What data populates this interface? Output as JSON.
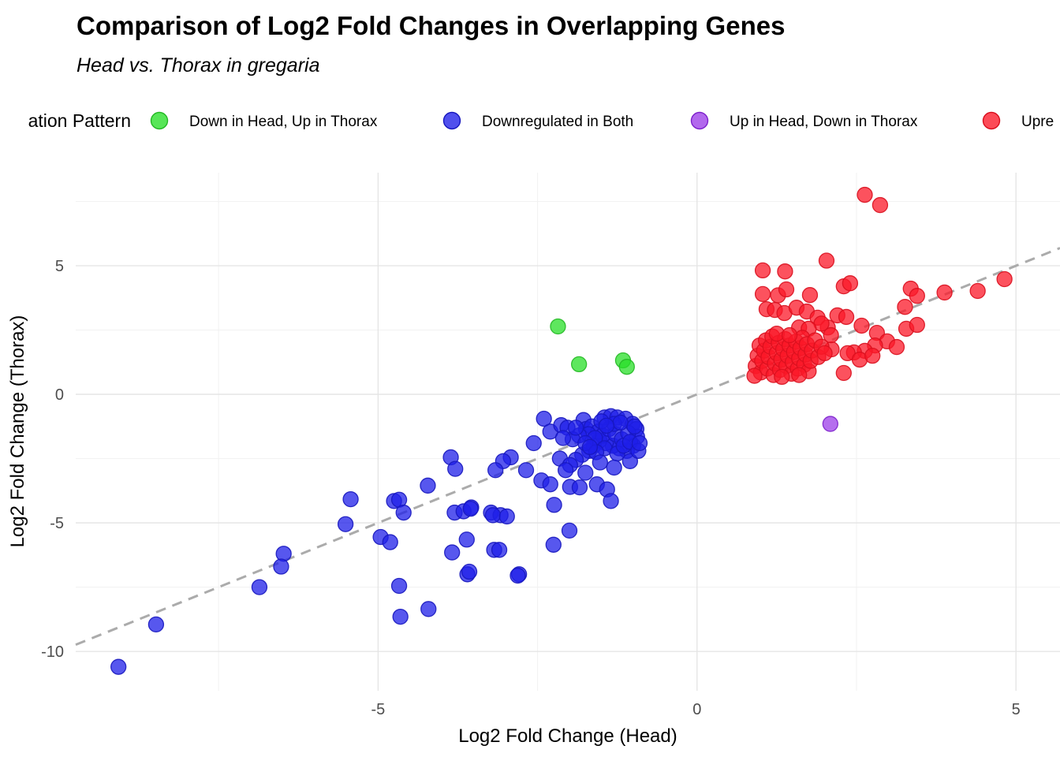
{
  "header": {
    "title": "Comparison of Log2 Fold Changes in Overlapping Genes",
    "subtitle": "Head vs. Thorax in gregaria"
  },
  "legend": {
    "title": "ation Pattern",
    "items": [
      {
        "label": "Down in Head, Up in Thorax",
        "color": "#28DF28",
        "stroke": "#24B824"
      },
      {
        "label": "Downregulated in Both",
        "color": "#1F1FE8",
        "stroke": "#1717BE"
      },
      {
        "label": "Up in Head, Down in Thorax",
        "color": "#9C3DE8",
        "stroke": "#7D20CB"
      },
      {
        "label": "Upre",
        "color": "#FB1828",
        "stroke": "#D90F1E"
      }
    ]
  },
  "chart_data": {
    "type": "scatter",
    "title": "Comparison of Log2 Fold Changes in Overlapping Genes",
    "subtitle": "Head vs. Thorax in gregaria",
    "xlabel": "Log2 Fold Change (Head)",
    "ylabel": "Log2 Fold Change (Thorax)",
    "xlim": [
      -9.74,
      5.69
    ],
    "ylim": [
      -11.53,
      8.62
    ],
    "x_ticks": [
      {
        "v": -5,
        "label": "-5"
      },
      {
        "v": 0,
        "label": "0"
      },
      {
        "v": 5,
        "label": "5"
      }
    ],
    "y_ticks": [
      {
        "v": 5,
        "label": "5"
      },
      {
        "v": 0,
        "label": "0"
      },
      {
        "v": -5,
        "label": "-5"
      },
      {
        "v": -10,
        "label": "-10"
      }
    ],
    "x_minor_ticks": [
      -7.5,
      -2.5,
      2.5
    ],
    "y_minor_ticks": [
      7.5,
      2.5,
      -2.5,
      -7.5
    ],
    "grid": true,
    "legend_position": "top",
    "reference_line": {
      "type": "identity y=x",
      "style": "dashed",
      "color": "#ABABAB"
    },
    "series": [
      {
        "name": "Down in Head, Up in Thorax",
        "color": "#28DF28",
        "stroke": "#24B824",
        "points": [
          [
            -2.18,
            2.64
          ],
          [
            -1.85,
            1.17
          ],
          [
            -1.16,
            1.32
          ],
          [
            -1.1,
            1.07
          ]
        ]
      },
      {
        "name": "Downregulated in Both",
        "color": "#1F1FE8",
        "stroke": "#1717BE",
        "points": [
          [
            -9.07,
            -10.6
          ],
          [
            -8.48,
            -8.95
          ],
          [
            -6.86,
            -7.5
          ],
          [
            -6.48,
            -6.2
          ],
          [
            -6.52,
            -6.7
          ],
          [
            -5.43,
            -4.08
          ],
          [
            -4.75,
            -4.15
          ],
          [
            -5.51,
            -5.05
          ],
          [
            -4.96,
            -5.55
          ],
          [
            -4.81,
            -5.75
          ],
          [
            -4.67,
            -7.45
          ],
          [
            -4.65,
            -8.65
          ],
          [
            -4.21,
            -8.35
          ],
          [
            -4.67,
            -4.1
          ],
          [
            -4.6,
            -4.6
          ],
          [
            -4.22,
            -3.55
          ],
          [
            -3.86,
            -2.45
          ],
          [
            -3.79,
            -2.9
          ],
          [
            -3.84,
            -6.15
          ],
          [
            -3.61,
            -5.65
          ],
          [
            -3.8,
            -4.6
          ],
          [
            -3.66,
            -4.55
          ],
          [
            -3.54,
            -4.4
          ],
          [
            -3.23,
            -4.6
          ],
          [
            -3.08,
            -4.7
          ],
          [
            -3.18,
            -6.05
          ],
          [
            -2.79,
            -7.0
          ],
          [
            -3.6,
            -7.0
          ],
          [
            -2.81,
            -7.05
          ],
          [
            -3.55,
            -4.45
          ],
          [
            -3.2,
            -4.7
          ],
          [
            -2.98,
            -4.75
          ],
          [
            -3.57,
            -6.9
          ],
          [
            -3.1,
            -6.05
          ],
          [
            -2.92,
            -2.45
          ],
          [
            -3.04,
            -2.6
          ],
          [
            -3.16,
            -2.95
          ],
          [
            -2.68,
            -2.95
          ],
          [
            -2.56,
            -1.9
          ],
          [
            -2.44,
            -3.35
          ],
          [
            -2.3,
            -3.5
          ],
          [
            -1.99,
            -3.6
          ],
          [
            -1.84,
            -3.62
          ],
          [
            -1.57,
            -3.5
          ],
          [
            -1.41,
            -3.7
          ],
          [
            -1.35,
            -4.15
          ],
          [
            -2.24,
            -4.3
          ],
          [
            -2.0,
            -5.3
          ],
          [
            -2.25,
            -5.85
          ],
          [
            -2.15,
            -2.5
          ],
          [
            -2.4,
            -0.95
          ],
          [
            -2.3,
            -1.45
          ],
          [
            -2.13,
            -1.2
          ],
          [
            -2.03,
            -1.3
          ],
          [
            -1.78,
            -1.0
          ],
          [
            -1.74,
            -1.35
          ],
          [
            -1.45,
            -0.9
          ],
          [
            -1.35,
            -0.85
          ],
          [
            -1.25,
            -0.9
          ],
          [
            -1.12,
            -0.95
          ],
          [
            -1.01,
            -1.15
          ],
          [
            -0.95,
            -1.35
          ],
          [
            -0.94,
            -1.65
          ],
          [
            -1.0,
            -2.0
          ],
          [
            -1.1,
            -2.2
          ],
          [
            -1.22,
            -2.1
          ],
          [
            -1.32,
            -2.0
          ],
          [
            -1.43,
            -1.9
          ],
          [
            -1.53,
            -1.8
          ],
          [
            -1.62,
            -2.0
          ],
          [
            -1.69,
            -2.2
          ],
          [
            -1.8,
            -2.35
          ],
          [
            -1.9,
            -2.55
          ],
          [
            -1.99,
            -2.75
          ],
          [
            -2.06,
            -2.95
          ],
          [
            -1.65,
            -1.25
          ],
          [
            -1.55,
            -1.45
          ],
          [
            -1.48,
            -1.6
          ],
          [
            -1.38,
            -1.35
          ],
          [
            -1.28,
            -1.55
          ],
          [
            -1.18,
            -1.75
          ],
          [
            -1.08,
            -1.5
          ],
          [
            -1.3,
            -1.15
          ],
          [
            -1.5,
            -1.05
          ],
          [
            -1.7,
            -1.55
          ],
          [
            -1.6,
            -1.7
          ],
          [
            -1.45,
            -2.1
          ],
          [
            -1.25,
            -2.3
          ],
          [
            -1.15,
            -2.0
          ],
          [
            -1.05,
            -1.85
          ],
          [
            -1.85,
            -1.6
          ],
          [
            -1.95,
            -1.75
          ],
          [
            -1.75,
            -1.9
          ],
          [
            -1.58,
            -2.25
          ],
          [
            -1.9,
            -1.3
          ],
          [
            -2.1,
            -1.7
          ],
          [
            -1.2,
            -1.1
          ],
          [
            -0.98,
            -1.25
          ],
          [
            -1.42,
            -1.22
          ],
          [
            -1.68,
            -2.05
          ],
          [
            -1.05,
            -2.6
          ],
          [
            -1.52,
            -2.65
          ],
          [
            -1.3,
            -2.85
          ],
          [
            -1.75,
            -3.05
          ],
          [
            -0.92,
            -2.2
          ],
          [
            -0.9,
            -1.9
          ]
        ]
      },
      {
        "name": "Up in Head, Down in Thorax",
        "color": "#9C3DE8",
        "stroke": "#7D20CB",
        "points": [
          [
            2.09,
            -1.15
          ]
        ]
      },
      {
        "name": "Upre",
        "color": "#FB1828",
        "stroke": "#D90F1E",
        "points": [
          [
            1.03,
            4.82
          ],
          [
            1.38,
            4.78
          ],
          [
            2.03,
            5.2
          ],
          [
            2.63,
            7.76
          ],
          [
            2.87,
            7.36
          ],
          [
            1.03,
            3.9
          ],
          [
            1.27,
            3.85
          ],
          [
            1.4,
            4.08
          ],
          [
            1.77,
            3.86
          ],
          [
            2.3,
            4.2
          ],
          [
            2.4,
            4.32
          ],
          [
            3.35,
            4.11
          ],
          [
            3.45,
            3.83
          ],
          [
            3.88,
            3.96
          ],
          [
            4.4,
            4.02
          ],
          [
            4.82,
            4.48
          ],
          [
            3.26,
            3.4
          ],
          [
            3.28,
            2.55
          ],
          [
            3.45,
            2.7
          ],
          [
            1.09,
            3.31
          ],
          [
            1.22,
            3.28
          ],
          [
            1.37,
            3.16
          ],
          [
            1.56,
            3.37
          ],
          [
            1.72,
            3.22
          ],
          [
            1.89,
            2.98
          ],
          [
            2.2,
            3.07
          ],
          [
            2.34,
            3.01
          ],
          [
            2.58,
            2.67
          ],
          [
            2.82,
            2.39
          ],
          [
            2.98,
            2.06
          ],
          [
            3.13,
            1.84
          ],
          [
            2.79,
            1.9
          ],
          [
            2.63,
            1.69
          ],
          [
            2.46,
            1.63
          ],
          [
            2.36,
            1.6
          ],
          [
            2.11,
            1.75
          ],
          [
            2.3,
            0.83
          ],
          [
            2.55,
            1.35
          ],
          [
            2.75,
            1.5
          ],
          [
            2.05,
            2.6
          ],
          [
            1.95,
            2.75
          ],
          [
            2.1,
            2.3
          ],
          [
            1.6,
            2.6
          ],
          [
            1.75,
            2.55
          ],
          [
            0.92,
            1.1
          ],
          [
            0.95,
            1.5
          ],
          [
            0.98,
            1.9
          ],
          [
            1.0,
            0.85
          ],
          [
            1.02,
            1.3
          ],
          [
            1.05,
            1.7
          ],
          [
            1.08,
            2.1
          ],
          [
            1.1,
            1.0
          ],
          [
            1.12,
            1.45
          ],
          [
            1.15,
            1.85
          ],
          [
            1.18,
            2.25
          ],
          [
            1.2,
            0.75
          ],
          [
            1.22,
            1.2
          ],
          [
            1.25,
            1.6
          ],
          [
            1.28,
            2.0
          ],
          [
            1.3,
            0.95
          ],
          [
            1.32,
            1.35
          ],
          [
            1.35,
            1.75
          ],
          [
            1.38,
            2.15
          ],
          [
            1.4,
            1.1
          ],
          [
            1.42,
            1.5
          ],
          [
            1.45,
            1.9
          ],
          [
            1.48,
            0.8
          ],
          [
            1.5,
            1.25
          ],
          [
            1.52,
            1.65
          ],
          [
            1.55,
            2.05
          ],
          [
            1.58,
            1.0
          ],
          [
            1.6,
            1.4
          ],
          [
            1.62,
            1.8
          ],
          [
            1.65,
            2.2
          ],
          [
            1.68,
            1.15
          ],
          [
            1.7,
            1.55
          ],
          [
            1.72,
            1.95
          ],
          [
            1.75,
            0.9
          ],
          [
            1.78,
            1.3
          ],
          [
            1.8,
            1.7
          ],
          [
            1.85,
            2.1
          ],
          [
            1.9,
            1.45
          ],
          [
            1.95,
            1.85
          ],
          [
            2.0,
            1.6
          ],
          [
            1.25,
            2.36
          ],
          [
            1.45,
            2.3
          ],
          [
            0.9,
            0.72
          ],
          [
            1.6,
            0.75
          ],
          [
            1.33,
            0.68
          ]
        ]
      }
    ]
  }
}
